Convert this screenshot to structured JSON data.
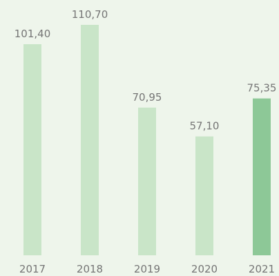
{
  "chart_data": {
    "type": "bar",
    "categories": [
      "2017",
      "2018",
      "2019",
      "2020",
      "2021"
    ],
    "values": [
      101.4,
      110.7,
      70.95,
      57.1,
      75.35
    ],
    "value_labels": [
      "101,40",
      "110,70",
      "70,95",
      "57,10",
      "75,35"
    ],
    "colors": [
      "#c9e5c8",
      "#c9e5c8",
      "#c9e5c8",
      "#c9e5c8",
      "#8dc897"
    ]
  }
}
